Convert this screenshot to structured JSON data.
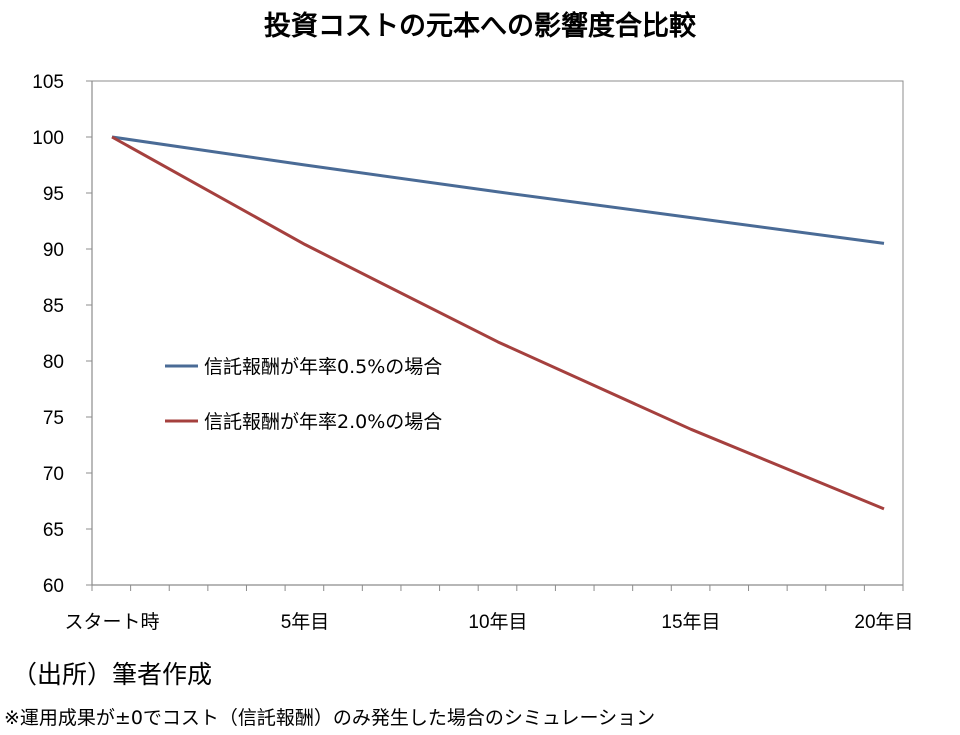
{
  "chart_data": {
    "type": "line",
    "title": "投資コストの元本への影響度合比較",
    "xlabel": "",
    "ylabel": "",
    "x_ticks": [
      "スタート時",
      "5年目",
      "10年目",
      "15年目",
      "20年目"
    ],
    "x": [
      0,
      5,
      10,
      15,
      20
    ],
    "ylim": [
      60,
      105
    ],
    "y_ticks": [
      60,
      65,
      70,
      75,
      80,
      85,
      90,
      95,
      100,
      105
    ],
    "grid": false,
    "legend_position": "left-middle",
    "series": [
      {
        "name": "信託報酬が年率0.5%の場合",
        "color": "#4a6b96",
        "values": [
          100,
          97.5,
          95.1,
          92.8,
          90.5
        ]
      },
      {
        "name": "信託報酬が年率2.0%の場合",
        "color": "#a5403e",
        "values": [
          100,
          90.4,
          81.7,
          73.9,
          66.8
        ]
      }
    ]
  },
  "notes": {
    "source": "（出所）筆者作成",
    "footnote": "※運用成果が±0でコスト（信託報酬）のみ発生した場合のシミュレーション"
  }
}
